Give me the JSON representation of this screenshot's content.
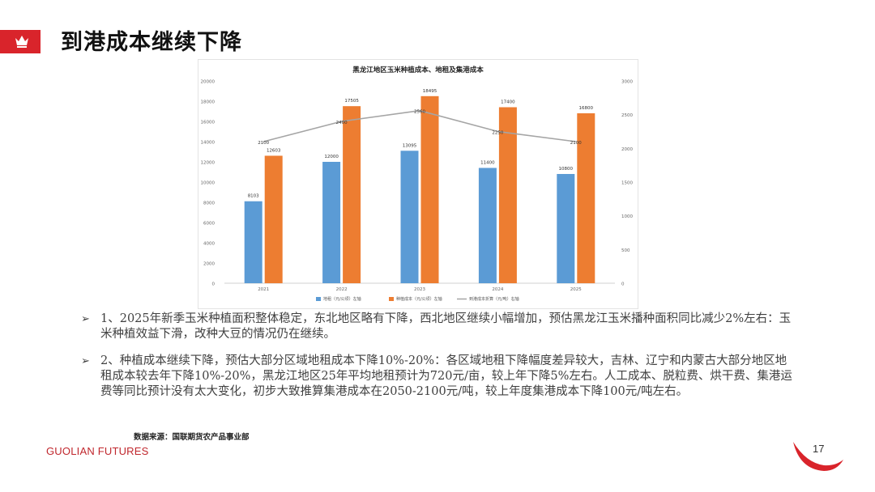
{
  "header": {
    "title": "到港成本继续下降",
    "logo_icon": "crown-icon",
    "brand_color": "#d9242b"
  },
  "chart_data": {
    "type": "bar",
    "title": "黑龙江地区玉米种植成本、地租及集港成本",
    "categories": [
      "2021",
      "2022",
      "2023",
      "2024",
      "2025"
    ],
    "series": [
      {
        "name": "地租（元/公顷）左轴",
        "type": "bar",
        "axis": "left",
        "color": "#5b9bd5",
        "values": [
          8103,
          12000,
          13095,
          11400,
          10800
        ]
      },
      {
        "name": "种植成本（元/公顷）左轴",
        "type": "bar",
        "axis": "left",
        "color": "#ed7d31",
        "values": [
          12603,
          17505,
          18495,
          17400,
          16800
        ]
      },
      {
        "name": "到港成本折算（元/吨）右轴",
        "type": "line",
        "axis": "right",
        "color": "#a5a5a5",
        "values": [
          2100,
          2400,
          2560,
          2250,
          2100
        ]
      }
    ],
    "ylim_left": [
      0,
      20000
    ],
    "ylim_right": [
      0,
      3000
    ],
    "yticks_left": [
      "0",
      "2000",
      "4000",
      "6000",
      "8000",
      "10000",
      "12000",
      "14000",
      "16000",
      "18000",
      "20000"
    ],
    "yticks_right": [
      "0",
      "500",
      "1000",
      "1500",
      "2000",
      "2500",
      "3000"
    ],
    "grid": false,
    "legend_position": "bottom"
  },
  "bullets": [
    "1、2025年新季玉米种植面积整体稳定，东北地区略有下降，西北地区继续小幅增加，预估黑龙江玉米播种面积同比减少2%左右：玉米种植效益下滑，改种大豆的情况仍在继续。",
    "2、种植成本继续下降，预估大部分区域地租成本下降10%-20%：各区域地租下降幅度差异较大，吉林、辽宁和内蒙古大部分地区地租成本较去年下降10%-20%，黑龙江地区25年平均地租预计为720元/亩，较上年下降5%左右。人工成本、脱粒费、烘干费、集港运费等同比预计没有太大变化，初步大致推算集港成本在2050-2100元/吨，较上年度集港成本下降100元/吨左右。"
  ],
  "bullet_marker": "➢",
  "source": "数据来源：国联期货农产品事业部",
  "footer": {
    "logo_text": "GUOLIAN FUTURES",
    "page_number": "17"
  }
}
